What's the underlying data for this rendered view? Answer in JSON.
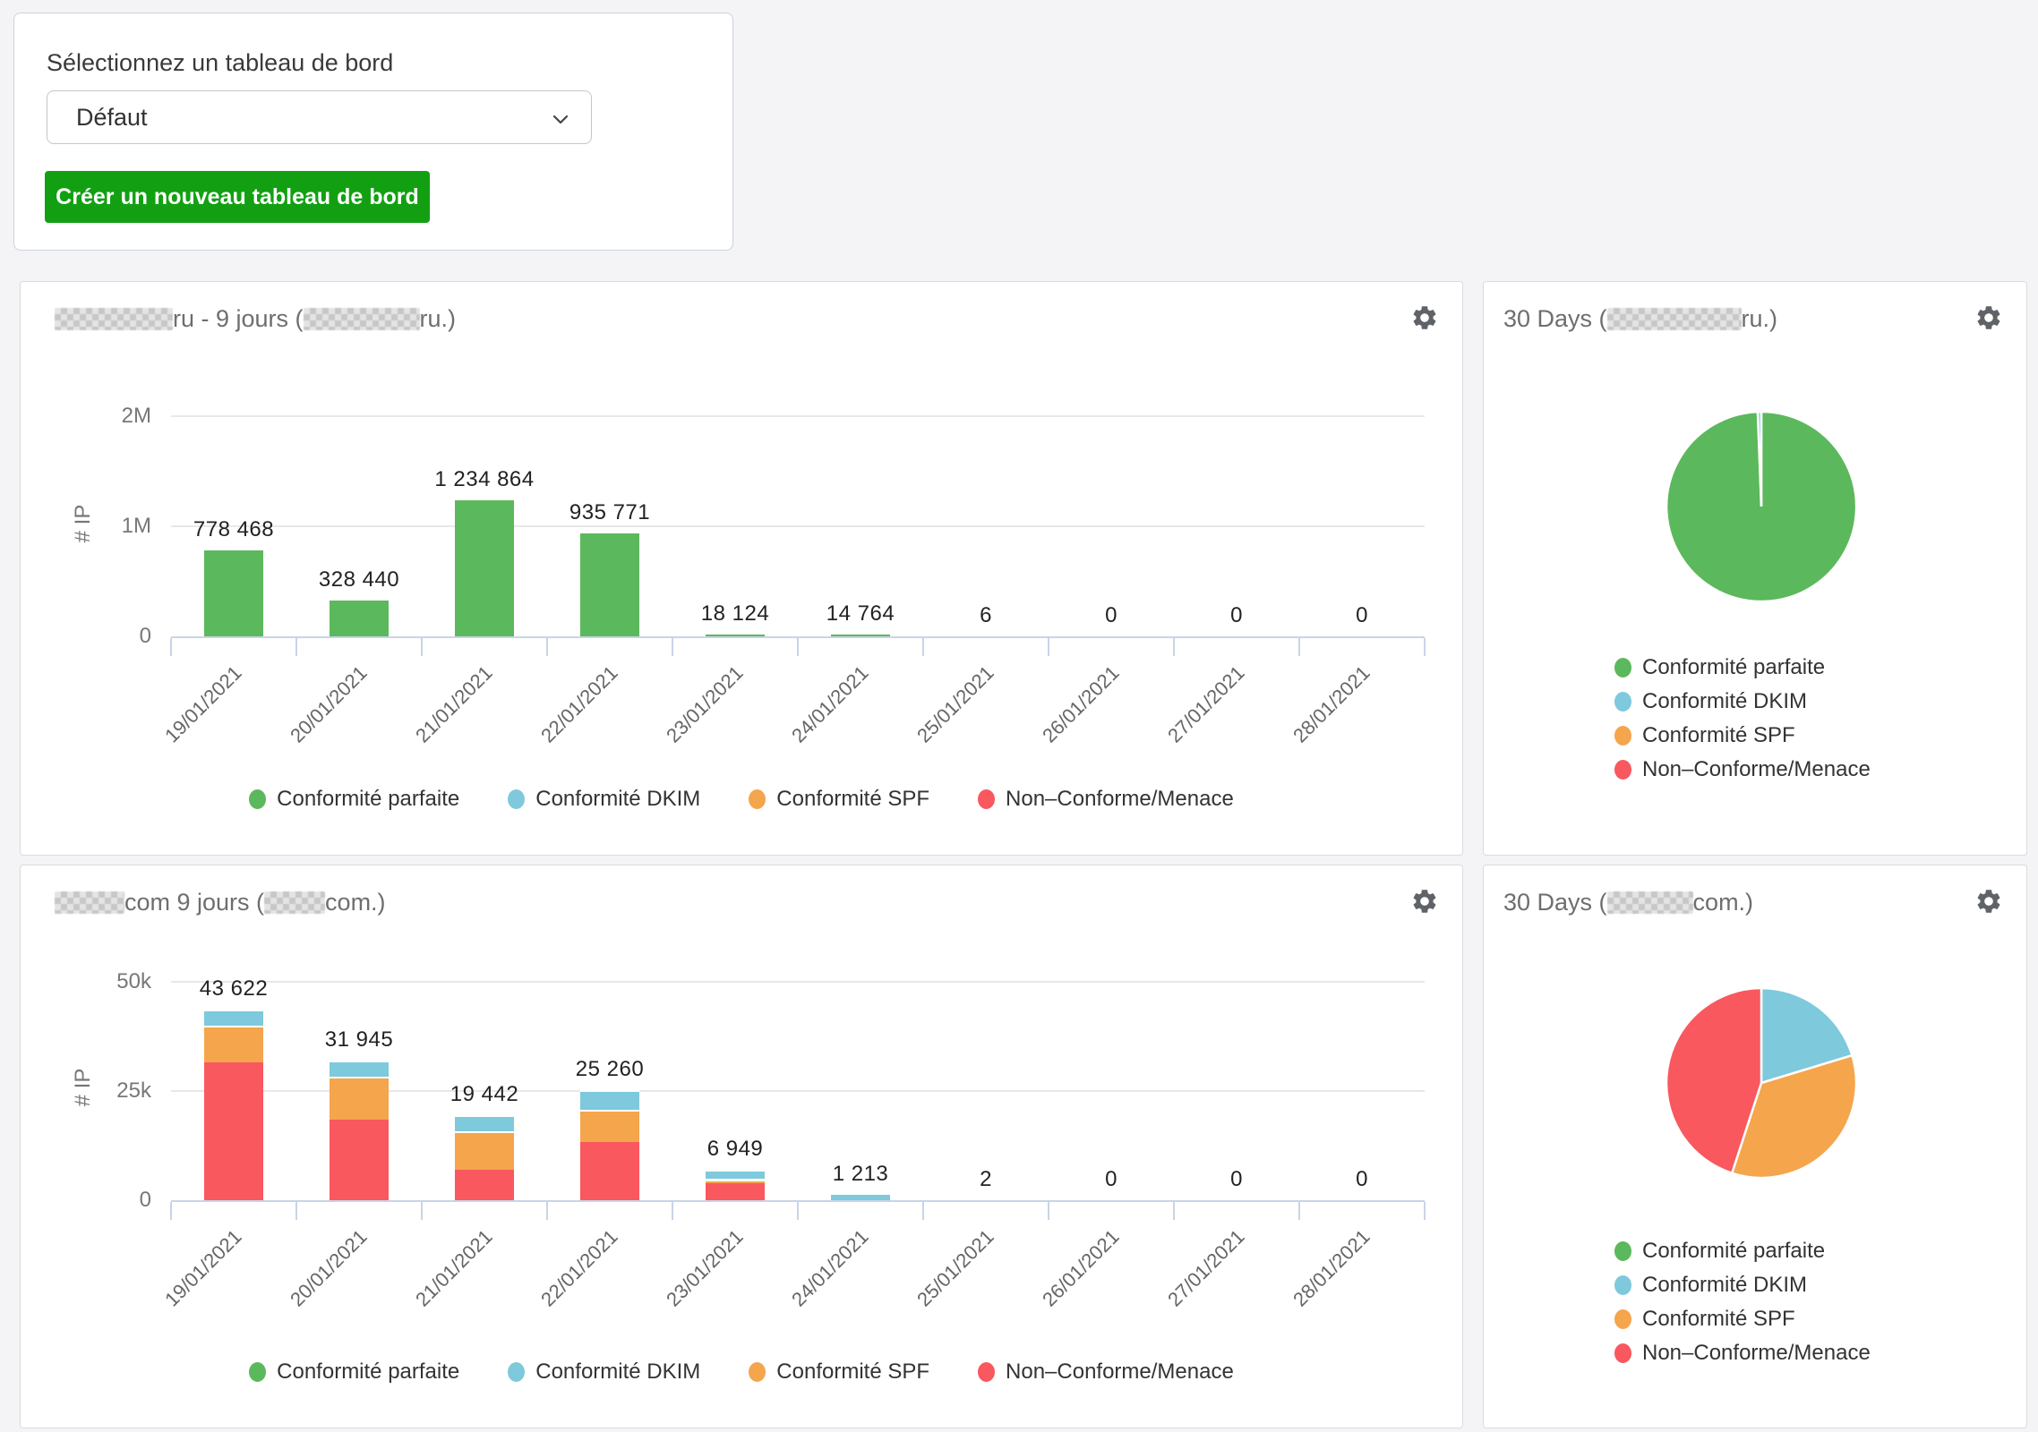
{
  "selector": {
    "label": "Sélectionnez un tableau de bord",
    "dropdown_value": "Défaut",
    "create_button_label": "Créer un nouveau tableau de bord"
  },
  "legend_items": [
    {
      "label": "Conformité parfaite",
      "color": "#5cb85c"
    },
    {
      "label": "Conformité DKIM",
      "color": "#7ec9dc"
    },
    {
      "label": "Conformité SPF",
      "color": "#f5a54c"
    },
    {
      "label": "Non–Conforme/Menace",
      "color": "#f9585e"
    }
  ],
  "cards": {
    "bar_ru": {
      "title_text_1": "ru - 9 jours (",
      "title_text_2": "ru.)"
    },
    "pie_ru": {
      "title_text_1": "30 Days (",
      "title_text_2": "ru.)"
    },
    "bar_com": {
      "title_text_1": "com 9 jours (",
      "title_text_2": "com.)"
    },
    "pie_com": {
      "title_text_1": "30 Days (",
      "title_text_2": "com.)"
    }
  },
  "chart_data": [
    {
      "id": "bar_ru",
      "type": "bar",
      "title": "[redacted]ru - 9 jours ([redacted]ru.)",
      "categories": [
        "19/01/2021",
        "20/01/2021",
        "21/01/2021",
        "22/01/2021",
        "23/01/2021",
        "24/01/2021",
        "25/01/2021",
        "26/01/2021",
        "27/01/2021",
        "28/01/2021"
      ],
      "series": [
        {
          "name": "Conformité parfaite",
          "color": "#5cb85c",
          "values": [
            778468,
            328440,
            1234864,
            935771,
            18124,
            14764,
            6,
            0,
            0,
            0
          ]
        }
      ],
      "total_labels": [
        "778 468",
        "328 440",
        "1 234 864",
        "935 771",
        "18 124",
        "14 764",
        "6",
        "0",
        "0",
        "0"
      ],
      "xlabel": "",
      "ylabel": "# IP",
      "yticks": [
        {
          "label": "0",
          "value": 0
        },
        {
          "label": "1M",
          "value": 1000000
        },
        {
          "label": "2M",
          "value": 2000000
        }
      ],
      "ylim": [
        0,
        2000000
      ],
      "legend_position": "bottom"
    },
    {
      "id": "pie_ru",
      "type": "pie",
      "title": "30 Days ([redacted]ru.)",
      "slices": [
        {
          "label": "Conformité parfaite",
          "color": "#5cb85c",
          "percent": 99.4
        },
        {
          "label": "Conformité DKIM",
          "color": "#7ec9dc",
          "percent": 0.6
        },
        {
          "label": "Conformité SPF",
          "color": "#f5a54c",
          "percent": 0
        },
        {
          "label": "Non–Conforme/Menace",
          "color": "#f9585e",
          "percent": 0
        }
      ],
      "legend_position": "bottom"
    },
    {
      "id": "bar_com",
      "type": "bar",
      "stacked": true,
      "title": "[redacted]com 9 jours ([redacted]com.)",
      "categories": [
        "19/01/2021",
        "20/01/2021",
        "21/01/2021",
        "22/01/2021",
        "23/01/2021",
        "24/01/2021",
        "25/01/2021",
        "26/01/2021",
        "27/01/2021",
        "28/01/2021"
      ],
      "series": [
        {
          "name": "Non–Conforme/Menace",
          "color": "#f9585e",
          "values": [
            31500,
            18500,
            6900,
            13300,
            4000,
            0,
            0,
            0,
            0,
            0
          ]
        },
        {
          "name": "Conformité SPF",
          "color": "#f5a54c",
          "values": [
            8500,
            9800,
            8800,
            7400,
            800,
            0,
            0,
            0,
            0,
            0
          ]
        },
        {
          "name": "Conformité DKIM",
          "color": "#7ec9dc",
          "values": [
            3622,
            3645,
            3742,
            4560,
            2149,
            1213,
            2,
            0,
            0,
            0
          ]
        }
      ],
      "total_labels": [
        "43 622",
        "31 945",
        "19 442",
        "25 260",
        "6 949",
        "1 213",
        "2",
        "0",
        "0",
        "0"
      ],
      "xlabel": "",
      "ylabel": "# IP",
      "yticks": [
        {
          "label": "0",
          "value": 0
        },
        {
          "label": "25k",
          "value": 25000
        },
        {
          "label": "50k",
          "value": 50000
        }
      ],
      "ylim": [
        0,
        50000
      ],
      "legend_position": "bottom"
    },
    {
      "id": "pie_com",
      "type": "pie",
      "title": "30 Days ([redacted]com.)",
      "slices": [
        {
          "label": "Conformité DKIM",
          "color": "#7ec9dc",
          "percent": 20.3
        },
        {
          "label": "Conformité SPF",
          "color": "#f5a54c",
          "percent": 34.7
        },
        {
          "label": "Non–Conforme/Menace",
          "color": "#f9585e",
          "percent": 45.0
        },
        {
          "label": "Conformité parfaite",
          "color": "#5cb85c",
          "percent": 0
        }
      ],
      "legend_position": "bottom"
    }
  ]
}
